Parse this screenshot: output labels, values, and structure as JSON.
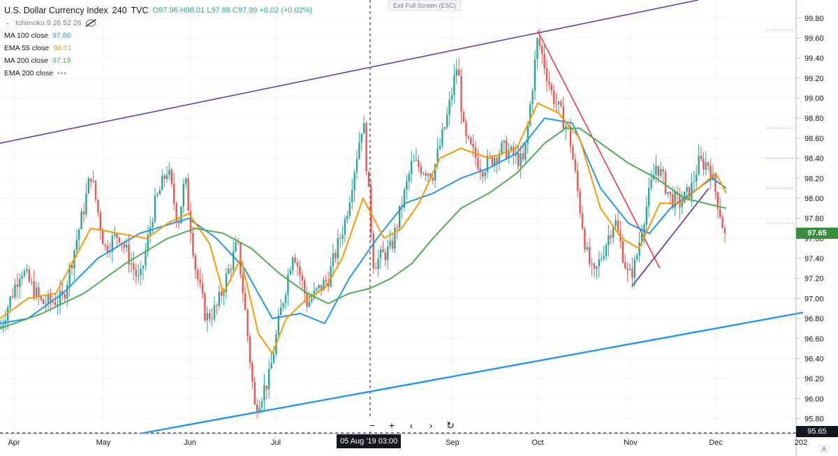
{
  "header": {
    "symbol": "U.S. Dollar Currency Index",
    "interval": "240",
    "exchange": "TVC",
    "ohlc": "O97.96 H98.01 L97.88 C97.99 +0.02 (+0.02%)",
    "exit_fullscreen": "Exit Full Screen (ESC)"
  },
  "indicators": [
    {
      "label": "Ichimoku 9 26 52 26",
      "value": "",
      "color": "#787b86"
    },
    {
      "label": "MA 100 close",
      "value": "97.60",
      "color": "#2196f3"
    },
    {
      "label": "EMA 55 close",
      "value": "98.01",
      "color": "#ff9800"
    },
    {
      "label": "MA 200 close",
      "value": "97.19",
      "color": "#4caf50"
    },
    {
      "label": "EMA 200 close",
      "value": "",
      "color": "#787b86"
    }
  ],
  "price_tags": {
    "last": "97.65",
    "last_color": "#388e3c",
    "bottom": "95.65",
    "bottom_color": "#131722"
  },
  "crosshair_time": "05 Aug '19   03:00",
  "nav_buttons": [
    "−",
    "+",
    "‹",
    "›",
    "↻"
  ],
  "auto_label": "A",
  "chart_data": {
    "type": "line",
    "title": "U.S. Dollar Currency Index",
    "ylim": [
      95.65,
      99.98
    ],
    "y_ticks": [
      95.8,
      96.0,
      96.2,
      96.4,
      96.6,
      96.8,
      97.0,
      97.2,
      97.4,
      97.6,
      97.8,
      98.0,
      98.2,
      98.4,
      98.6,
      98.8,
      99.0,
      99.2,
      99.4,
      99.6,
      99.8
    ],
    "x_ticks": [
      "Apr",
      "May",
      "Jun",
      "Jul",
      "Sep",
      "Oct",
      "Nov",
      "Dec",
      "202"
    ],
    "grid": true,
    "colors": {
      "up": "#26a69a",
      "down": "#ef5350",
      "ma100": "#2196f3",
      "ema55": "#ff9800",
      "ma200": "#4caf50",
      "channel_top": "#673ab7",
      "channel_bottom": "#2196f3",
      "downtrend": "#f23645",
      "uptrend": "#673ab7"
    },
    "price": [
      [
        0,
        96.7
      ],
      [
        30,
        97.3
      ],
      [
        60,
        96.95
      ],
      [
        90,
        97.0
      ],
      [
        120,
        97.9
      ],
      [
        130,
        98.25
      ],
      [
        150,
        97.5
      ],
      [
        170,
        97.65
      ],
      [
        200,
        97.15
      ],
      [
        220,
        97.9
      ],
      [
        240,
        98.3
      ],
      [
        255,
        97.75
      ],
      [
        265,
        98.2
      ],
      [
        280,
        97.3
      ],
      [
        295,
        96.8
      ],
      [
        310,
        96.9
      ],
      [
        340,
        97.55
      ],
      [
        350,
        96.95
      ],
      [
        365,
        95.9
      ],
      [
        385,
        96.2
      ],
      [
        400,
        96.8
      ],
      [
        420,
        97.5
      ],
      [
        440,
        96.95
      ],
      [
        470,
        97.2
      ],
      [
        495,
        97.8
      ],
      [
        520,
        98.8
      ],
      [
        535,
        97.35
      ],
      [
        560,
        97.5
      ],
      [
        590,
        98.35
      ],
      [
        620,
        98.25
      ],
      [
        640,
        98.8
      ],
      [
        655,
        99.35
      ],
      [
        665,
        98.6
      ],
      [
        690,
        98.3
      ],
      [
        720,
        98.5
      ],
      [
        750,
        98.35
      ],
      [
        770,
        99.6
      ],
      [
        790,
        99.05
      ],
      [
        815,
        98.65
      ],
      [
        840,
        97.45
      ],
      [
        850,
        97.2
      ],
      [
        880,
        97.8
      ],
      [
        900,
        97.2
      ],
      [
        910,
        97.35
      ],
      [
        920,
        97.75
      ],
      [
        940,
        98.35
      ],
      [
        960,
        98.0
      ],
      [
        975,
        97.95
      ],
      [
        990,
        98.1
      ],
      [
        1000,
        98.35
      ],
      [
        1015,
        98.35
      ],
      [
        1030,
        97.9
      ],
      [
        1040,
        97.55
      ]
    ],
    "series": [
      {
        "name": "MA 100 close",
        "x": [
          0,
          40,
          90,
          140,
          200,
          270,
          310,
          350,
          390,
          430,
          465,
          500,
          540,
          580,
          620,
          660,
          700,
          740,
          780,
          820,
          860,
          900,
          930,
          960,
          990,
          1020,
          1040
        ],
        "values": [
          96.75,
          96.8,
          97.05,
          97.4,
          97.65,
          97.8,
          97.6,
          97.3,
          96.8,
          96.85,
          96.75,
          97.2,
          97.6,
          97.95,
          98.05,
          98.2,
          98.3,
          98.45,
          98.8,
          98.75,
          98.1,
          97.75,
          97.65,
          97.9,
          98.05,
          98.2,
          98.1
        ]
      },
      {
        "name": "EMA 55 close",
        "x": [
          0,
          40,
          80,
          130,
          170,
          210,
          240,
          270,
          300,
          320,
          345,
          370,
          390,
          410,
          440,
          465,
          490,
          520,
          550,
          575,
          600,
          630,
          660,
          700,
          740,
          770,
          800,
          830,
          860,
          890,
          915,
          945,
          975,
          1000,
          1025,
          1040
        ],
        "values": [
          96.8,
          97.0,
          97.05,
          97.7,
          97.65,
          97.6,
          97.75,
          97.85,
          97.55,
          97.05,
          97.4,
          96.65,
          96.45,
          96.8,
          97.0,
          97.1,
          97.4,
          98.0,
          97.6,
          97.7,
          97.95,
          98.4,
          98.5,
          98.4,
          98.5,
          98.95,
          98.85,
          98.6,
          97.9,
          97.6,
          97.5,
          97.95,
          97.95,
          98.1,
          98.25,
          98.05
        ]
      },
      {
        "name": "MA 200 close",
        "x": [
          0,
          60,
          120,
          180,
          240,
          280,
          320,
          360,
          400,
          440,
          470,
          500,
          530,
          560,
          590,
          620,
          660,
          700,
          740,
          780,
          810,
          830,
          860,
          900,
          940,
          980,
          1010,
          1040
        ],
        "values": [
          96.7,
          96.85,
          97.05,
          97.35,
          97.6,
          97.7,
          97.65,
          97.5,
          97.25,
          97.05,
          96.95,
          97.05,
          97.1,
          97.2,
          97.35,
          97.6,
          97.9,
          98.05,
          98.25,
          98.55,
          98.7,
          98.7,
          98.55,
          98.35,
          98.2,
          98.0,
          97.95,
          97.9
        ]
      }
    ],
    "trendlines": [
      {
        "name": "channel_top",
        "from": [
          0,
          98.55
        ],
        "to": [
          1000,
          99.98
        ]
      },
      {
        "name": "channel_bottom",
        "from": [
          200,
          95.65
        ],
        "to": [
          1150,
          96.86
        ]
      },
      {
        "name": "downtrend",
        "from": [
          770,
          99.67
        ],
        "to": [
          945,
          97.3
        ]
      },
      {
        "name": "uptrend",
        "from": [
          905,
          97.12
        ],
        "to": [
          1015,
          98.1
        ]
      }
    ]
  }
}
